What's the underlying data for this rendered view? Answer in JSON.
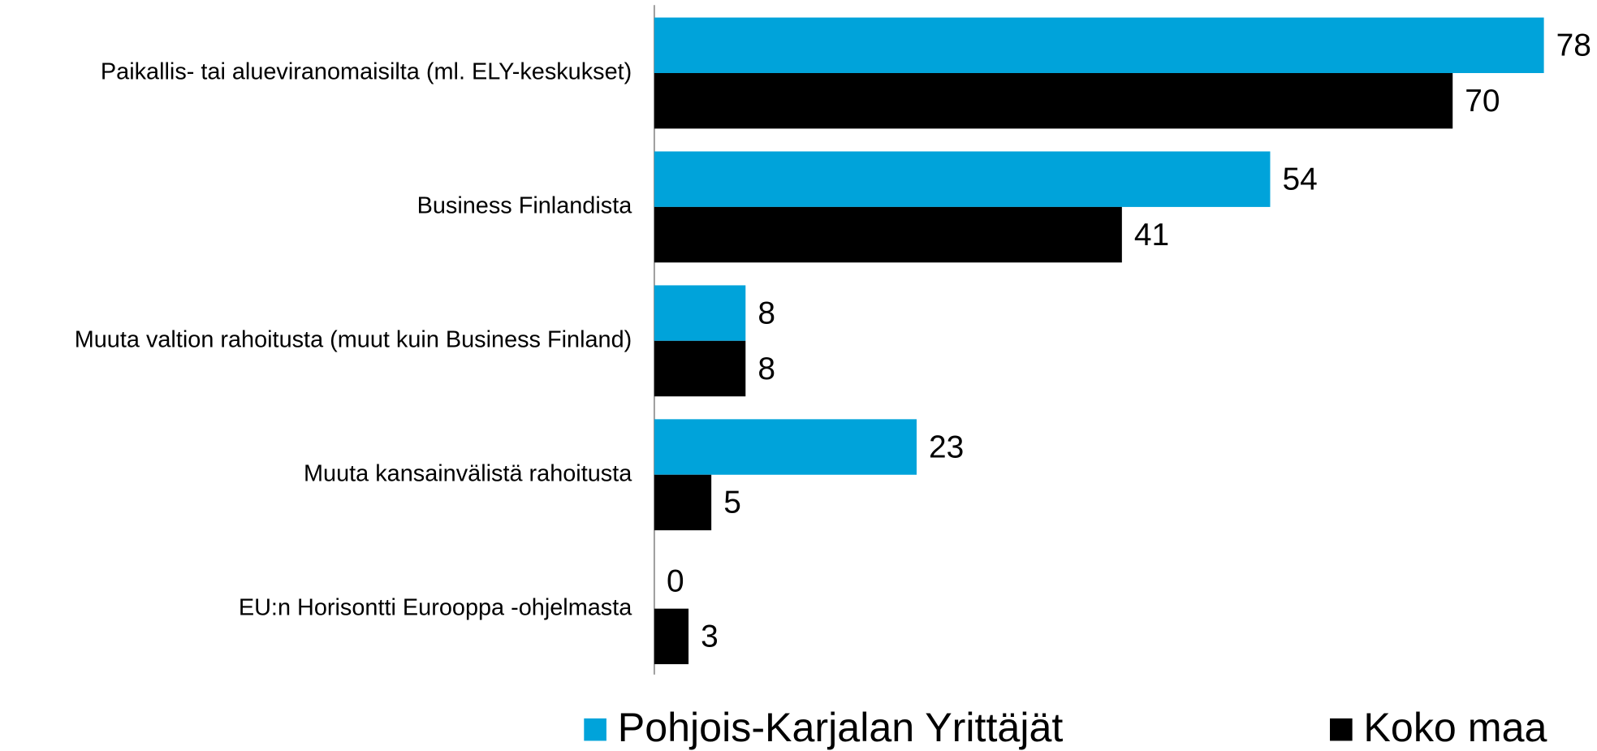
{
  "chart_data": {
    "type": "bar",
    "orientation": "horizontal",
    "categories": [
      "Paikallis- tai alueviranomaisilta (ml. ELY-keskukset)",
      "Business Finlandista",
      "Muuta valtion rahoitusta (muut kuin Business Finland)",
      "Muuta kansainvälistä rahoitusta",
      "EU:n Horisontti Eurooppa -ohjelmasta"
    ],
    "series": [
      {
        "name": "Pohjois-Karjalan Yrittäjät",
        "color": "#00a3da",
        "values": [
          78,
          54,
          8,
          23,
          0
        ]
      },
      {
        "name": "Koko maa",
        "color": "#000000",
        "values": [
          70,
          41,
          8,
          5,
          3
        ]
      }
    ],
    "legend": "bottom"
  }
}
